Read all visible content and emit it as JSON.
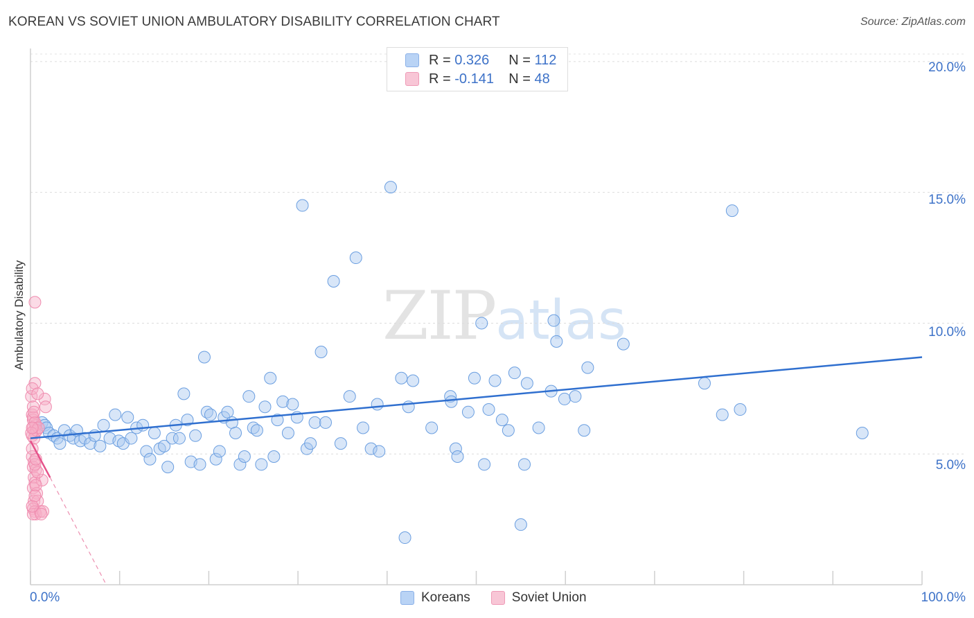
{
  "title": "KOREAN VS SOVIET UNION AMBULATORY DISABILITY CORRELATION CHART",
  "source": "Source: ZipAtlas.com",
  "watermark": {
    "zip": "ZIP",
    "atlas": "atlas"
  },
  "legend": {
    "rows": [
      {
        "r_label": "R =",
        "r_value": "0.326",
        "n_label": "N =",
        "n_value": "112"
      },
      {
        "r_label": "R =",
        "r_value": "-0.141",
        "n_label": "N =",
        "n_value": "48"
      }
    ]
  },
  "bottom_legend": [
    "Koreans",
    "Soviet Union"
  ],
  "colors": {
    "koreans": "#5a93dc",
    "soviet": "#ec6f9a",
    "blue_line": "#2f6fcf",
    "pink_line": "#e5528a",
    "tick_text": "#3d72c8"
  },
  "chart_data": {
    "type": "scatter",
    "title": "KOREAN VS SOVIET UNION AMBULATORY DISABILITY CORRELATION CHART",
    "xlabel": "",
    "ylabel": "Ambulatory Disability",
    "xlim": [
      0,
      100
    ],
    "ylim": [
      0,
      20.5
    ],
    "x_tick_labels": [
      "0.0%",
      "100.0%"
    ],
    "y_ticks": [
      5,
      10,
      15,
      20
    ],
    "y_tick_labels": [
      "5.0%",
      "10.0%",
      "15.0%",
      "20.0%"
    ],
    "series": [
      {
        "name": "Koreans",
        "R": 0.326,
        "N": 112,
        "trend": {
          "x": [
            0,
            100
          ],
          "y": [
            5.6,
            8.7
          ]
        },
        "points": [
          [
            1.3,
            6.2
          ],
          [
            1.6,
            6.1
          ],
          [
            1.8,
            6.0
          ],
          [
            2.1,
            5.8
          ],
          [
            2.6,
            5.7
          ],
          [
            3.0,
            5.6
          ],
          [
            3.3,
            5.4
          ],
          [
            3.8,
            5.9
          ],
          [
            4.4,
            5.7
          ],
          [
            4.8,
            5.6
          ],
          [
            5.2,
            5.9
          ],
          [
            5.6,
            5.5
          ],
          [
            6.1,
            5.6
          ],
          [
            6.7,
            5.4
          ],
          [
            7.2,
            5.7
          ],
          [
            7.8,
            5.3
          ],
          [
            8.2,
            6.1
          ],
          [
            8.9,
            5.6
          ],
          [
            9.5,
            6.5
          ],
          [
            9.9,
            5.5
          ],
          [
            10.4,
            5.4
          ],
          [
            10.9,
            6.4
          ],
          [
            11.3,
            5.6
          ],
          [
            11.9,
            6.0
          ],
          [
            12.6,
            6.1
          ],
          [
            13.0,
            5.1
          ],
          [
            13.4,
            4.8
          ],
          [
            13.9,
            5.8
          ],
          [
            14.5,
            5.2
          ],
          [
            15.0,
            5.3
          ],
          [
            15.4,
            4.5
          ],
          [
            15.9,
            5.6
          ],
          [
            16.3,
            6.1
          ],
          [
            16.7,
            5.6
          ],
          [
            17.2,
            7.3
          ],
          [
            17.6,
            6.3
          ],
          [
            18.0,
            4.7
          ],
          [
            18.5,
            5.7
          ],
          [
            19.0,
            4.6
          ],
          [
            19.5,
            8.7
          ],
          [
            19.8,
            6.6
          ],
          [
            20.2,
            6.5
          ],
          [
            20.8,
            4.8
          ],
          [
            21.2,
            5.1
          ],
          [
            21.7,
            6.4
          ],
          [
            22.1,
            6.6
          ],
          [
            22.6,
            6.2
          ],
          [
            23.0,
            5.8
          ],
          [
            23.5,
            4.6
          ],
          [
            24.0,
            4.9
          ],
          [
            24.5,
            7.2
          ],
          [
            25.0,
            6.0
          ],
          [
            25.4,
            5.9
          ],
          [
            25.9,
            4.6
          ],
          [
            26.3,
            6.8
          ],
          [
            26.9,
            7.9
          ],
          [
            27.3,
            4.9
          ],
          [
            27.7,
            6.3
          ],
          [
            28.3,
            7.0
          ],
          [
            28.9,
            5.8
          ],
          [
            29.4,
            6.9
          ],
          [
            29.9,
            6.4
          ],
          [
            30.5,
            14.5
          ],
          [
            31.0,
            5.2
          ],
          [
            31.4,
            5.4
          ],
          [
            31.9,
            6.2
          ],
          [
            32.6,
            8.9
          ],
          [
            33.1,
            6.2
          ],
          [
            34.0,
            11.6
          ],
          [
            34.8,
            5.4
          ],
          [
            35.8,
            7.2
          ],
          [
            36.5,
            12.5
          ],
          [
            37.3,
            6.0
          ],
          [
            38.2,
            5.2
          ],
          [
            38.9,
            6.9
          ],
          [
            39.1,
            5.1
          ],
          [
            40.4,
            15.2
          ],
          [
            41.6,
            7.9
          ],
          [
            42.0,
            1.8
          ],
          [
            42.4,
            6.8
          ],
          [
            42.9,
            7.8
          ],
          [
            45.0,
            6.0
          ],
          [
            47.1,
            7.2
          ],
          [
            47.7,
            5.2
          ],
          [
            47.9,
            4.9
          ],
          [
            49.1,
            6.6
          ],
          [
            49.8,
            7.9
          ],
          [
            50.6,
            10.0
          ],
          [
            50.9,
            4.6
          ],
          [
            51.4,
            6.7
          ],
          [
            52.1,
            7.8
          ],
          [
            52.9,
            6.3
          ],
          [
            53.6,
            5.9
          ],
          [
            54.3,
            8.1
          ],
          [
            55.0,
            2.3
          ],
          [
            55.4,
            4.6
          ],
          [
            55.7,
            7.7
          ],
          [
            57.0,
            6.0
          ],
          [
            58.4,
            7.4
          ],
          [
            58.7,
            10.1
          ],
          [
            59.0,
            9.3
          ],
          [
            59.9,
            7.1
          ],
          [
            61.1,
            7.2
          ],
          [
            62.1,
            5.9
          ],
          [
            62.5,
            8.3
          ],
          [
            66.5,
            9.2
          ],
          [
            75.6,
            7.7
          ],
          [
            77.6,
            6.5
          ],
          [
            78.7,
            14.3
          ],
          [
            79.6,
            6.7
          ],
          [
            93.3,
            5.8
          ],
          [
            47.2,
            7.0
          ]
        ]
      },
      {
        "name": "Soviet Union",
        "R": -0.141,
        "N": 48,
        "trend": {
          "x": [
            0,
            2.2
          ],
          "y": [
            5.5,
            4.1
          ]
        },
        "trend_extended": {
          "x": [
            2.2,
            8.5
          ],
          "y": [
            4.1,
            0
          ]
        },
        "points": [
          [
            0.1,
            7.2
          ],
          [
            0.2,
            6.5
          ],
          [
            0.3,
            6.3
          ],
          [
            0.3,
            6.0
          ],
          [
            0.4,
            5.9
          ],
          [
            0.5,
            5.8
          ],
          [
            0.2,
            5.7
          ],
          [
            0.4,
            5.6
          ],
          [
            0.6,
            6.1
          ],
          [
            0.3,
            6.4
          ],
          [
            0.5,
            6.2
          ],
          [
            0.7,
            5.9
          ],
          [
            0.2,
            4.9
          ],
          [
            0.4,
            4.7
          ],
          [
            0.3,
            4.5
          ],
          [
            0.6,
            4.4
          ],
          [
            0.4,
            4.1
          ],
          [
            0.5,
            3.9
          ],
          [
            0.3,
            3.7
          ],
          [
            0.7,
            3.5
          ],
          [
            0.4,
            3.2
          ],
          [
            0.8,
            3.2
          ],
          [
            0.3,
            2.9
          ],
          [
            0.5,
            2.8
          ],
          [
            0.6,
            2.7
          ],
          [
            0.3,
            2.7
          ],
          [
            1.1,
            2.8
          ],
          [
            1.4,
            2.8
          ],
          [
            1.2,
            2.7
          ],
          [
            0.5,
            10.8
          ],
          [
            0.5,
            7.7
          ],
          [
            0.2,
            7.5
          ],
          [
            1.6,
            7.1
          ],
          [
            1.7,
            6.8
          ],
          [
            1.3,
            4.0
          ],
          [
            0.8,
            4.3
          ],
          [
            0.9,
            6.0
          ],
          [
            0.1,
            5.8
          ],
          [
            0.2,
            6.0
          ],
          [
            0.5,
            4.6
          ],
          [
            0.6,
            3.8
          ],
          [
            0.3,
            6.8
          ],
          [
            0.4,
            6.6
          ],
          [
            0.8,
            7.3
          ],
          [
            0.2,
            3.0
          ],
          [
            0.5,
            3.4
          ],
          [
            0.6,
            4.8
          ],
          [
            0.2,
            5.2
          ]
        ]
      }
    ]
  }
}
